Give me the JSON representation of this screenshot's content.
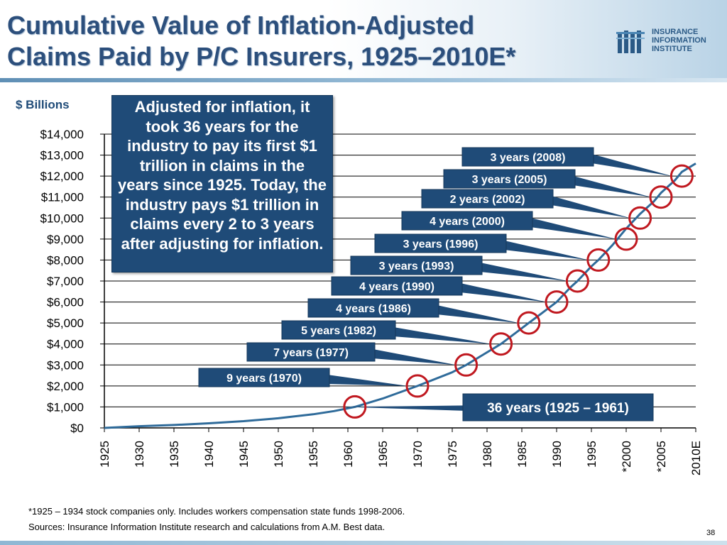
{
  "header": {
    "title_line1": "Cumulative Value of Inflation-Adjusted",
    "title_line2": "Claims Paid by P/C Insurers, 1925–2010E*",
    "logo_lines": [
      "INSURANCE",
      "INFORMATION",
      "INSTITUTE"
    ]
  },
  "colors": {
    "title": "#2c4f7c",
    "callout_bg": "#1f4b78",
    "line": "#2f6b9a",
    "circle": "#c0181f"
  },
  "callout": {
    "text": "Adjusted for inflation, it took 36 years for the industry to pay its first $1 trillion in claims in the years since 1925. Today, the industry pays $1 trillion in claims every 2 to 3 years after adjusting for inflation."
  },
  "chart_data": {
    "type": "line",
    "title": "Cumulative Value of Inflation-Adjusted Claims Paid by P/C Insurers, 1925–2010E*",
    "ylabel": "$ Billions",
    "xlabel": "",
    "ylim": [
      0,
      14000
    ],
    "xlim": [
      1925,
      2010
    ],
    "grid": true,
    "x_tick_labels": [
      "1925",
      "1930",
      "1935",
      "1940",
      "1945",
      "1950",
      "1955",
      "1960",
      "1965",
      "1970",
      "1975",
      "1980",
      "1985",
      "1990",
      "1995",
      "*2000",
      "*2005",
      "2010E"
    ],
    "x_tick_values": [
      1925,
      1930,
      1935,
      1940,
      1945,
      1950,
      1955,
      1960,
      1965,
      1970,
      1975,
      1980,
      1985,
      1990,
      1995,
      2000,
      2005,
      2010
    ],
    "y_tick_labels": [
      "$0",
      "$1,000",
      "$2,000",
      "$3,000",
      "$4,000",
      "$5,000",
      "$6,000",
      "$7,000",
      "$8,000",
      "$9,000",
      "$10,000",
      "$11,000",
      "$12,000",
      "$13,000",
      "$14,000"
    ],
    "y_tick_values": [
      0,
      1000,
      2000,
      3000,
      4000,
      5000,
      6000,
      7000,
      8000,
      9000,
      10000,
      11000,
      12000,
      13000,
      14000
    ],
    "series": [
      {
        "name": "Cumulative inflation-adjusted claims",
        "x": [
          1925,
          1930,
          1935,
          1940,
          1945,
          1950,
          1955,
          1958,
          1961,
          1965,
          1970,
          1975,
          1977,
          1980,
          1982,
          1984,
          1986,
          1988,
          1990,
          1992,
          1993,
          1995,
          1996,
          1998,
          2000,
          2002,
          2004,
          2005,
          2007,
          2008,
          2010
        ],
        "values": [
          0,
          80,
          140,
          220,
          320,
          460,
          650,
          800,
          1000,
          1400,
          2000,
          2650,
          3000,
          3600,
          4000,
          4500,
          5000,
          5500,
          6000,
          6700,
          7000,
          7700,
          8000,
          8700,
          9500,
          10200,
          10800,
          11200,
          11800,
          12200,
          12600
        ]
      }
    ],
    "milestones": [
      {
        "label": "36 years (1925 – 1961)",
        "x": 1961,
        "y": 1000
      },
      {
        "label": "9 years (1970)",
        "x": 1970,
        "y": 2000
      },
      {
        "label": "7 years (1977)",
        "x": 1977,
        "y": 3000
      },
      {
        "label": "5 years (1982)",
        "x": 1982,
        "y": 4000
      },
      {
        "label": "4 years (1986)",
        "x": 1986,
        "y": 5000
      },
      {
        "label": "4 years (1990)",
        "x": 1990,
        "y": 6000
      },
      {
        "label": "3 years (1993)",
        "x": 1993,
        "y": 7000
      },
      {
        "label": "3 years (1996)",
        "x": 1996,
        "y": 8000
      },
      {
        "label": "4 years (2000)",
        "x": 2000,
        "y": 9000
      },
      {
        "label": "2 years (2002)",
        "x": 2002,
        "y": 10000
      },
      {
        "label": "3 years (2005)",
        "x": 2005,
        "y": 11000
      },
      {
        "label": "3 years (2008)",
        "x": 2008,
        "y": 12000
      }
    ]
  },
  "footer": {
    "footnote": "*1925 – 1934 stock companies only.  Includes workers compensation state funds 1998-2006.",
    "sources": "Sources:  Insurance Information Institute research and calculations from A.M. Best data.",
    "page_number": "38"
  }
}
